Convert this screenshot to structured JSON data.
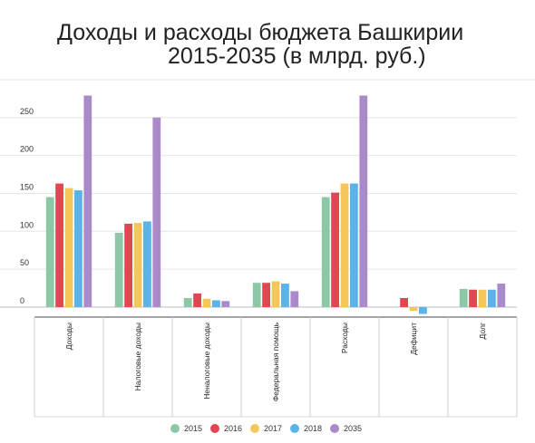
{
  "chart_data": {
    "type": "bar",
    "title_line1": "Доходы и расходы бюджета Башкирии",
    "title_line2": "2015-2035 (в млрд. руб.)",
    "categories": [
      "Доходы",
      "Налоговые доходы",
      "Неналоговые доходы",
      "Федеральная помощь",
      "Расходы",
      "Дефицит",
      "Долг"
    ],
    "series": [
      {
        "name": "2015",
        "color": "#8cc7a6",
        "values": [
          145,
          98,
          12,
          32,
          145,
          0,
          24
        ]
      },
      {
        "name": "2016",
        "color": "#e0474f",
        "values": [
          163,
          110,
          18,
          32,
          151,
          12,
          23
        ]
      },
      {
        "name": "2017",
        "color": "#f5c75a",
        "values": [
          157,
          111,
          11,
          34,
          163,
          -5,
          23
        ]
      },
      {
        "name": "2018",
        "color": "#5ab4e8",
        "values": [
          154,
          113,
          9,
          31,
          163,
          -9,
          23
        ]
      },
      {
        "name": "2035",
        "color": "#ab8ac9",
        "values": [
          279,
          250,
          8,
          21,
          279,
          0,
          31
        ]
      }
    ],
    "yticks": [
      0,
      50,
      100,
      150,
      200,
      250
    ],
    "ylim": [
      -15,
      290
    ],
    "grid": true,
    "legend_position": "bottom"
  }
}
